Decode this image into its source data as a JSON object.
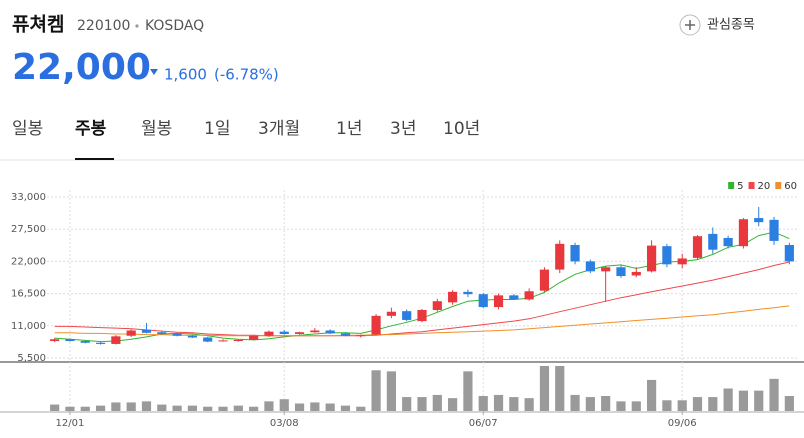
{
  "header": {
    "name": "퓨쳐켐",
    "code": "220100",
    "market": "KOSDAQ",
    "watch": "관심종목",
    "price": "22,000",
    "change": "1,600",
    "change_pct": "(-6.78%)"
  },
  "tabs": {
    "items": [
      "일봉",
      "주봉",
      "월봉",
      "1일",
      "3개월",
      "1년",
      "3년",
      "10년"
    ],
    "active": 1
  },
  "chart_data": {
    "type": "candlestick",
    "categories": [
      null,
      "12/01",
      null,
      null,
      null,
      null,
      null,
      null,
      null,
      null,
      null,
      null,
      null,
      null,
      null,
      "03/08",
      null,
      null,
      null,
      null,
      null,
      null,
      null,
      null,
      null,
      null,
      null,
      null,
      "06/07",
      null,
      null,
      null,
      null,
      null,
      null,
      null,
      null,
      null,
      null,
      null,
      null,
      "09/06",
      null,
      null,
      null,
      null,
      null,
      null,
      null
    ],
    "open": [
      8400,
      8700,
      8400,
      8100,
      7900,
      9300,
      10300,
      9900,
      9600,
      9300,
      9000,
      8400,
      8400,
      8600,
      9300,
      10000,
      9600,
      9900,
      10200,
      9700,
      9300,
      9500,
      12700,
      13500,
      11800,
      13700,
      15000,
      16800,
      16400,
      14200,
      16200,
      15500,
      17000,
      20600,
      24800,
      22000,
      20300,
      21000,
      19600,
      20300,
      24600,
      21500,
      22600,
      26700,
      26000,
      24600,
      29400,
      29100,
      24800
    ],
    "high": [
      8900,
      8800,
      8500,
      8300,
      9400,
      10400,
      11500,
      10100,
      9700,
      9400,
      9100,
      8700,
      8700,
      9400,
      10200,
      10300,
      10000,
      10600,
      10400,
      9900,
      9500,
      13000,
      14100,
      13800,
      13900,
      15600,
      17100,
      17200,
      16600,
      16500,
      16400,
      17400,
      21000,
      25600,
      25200,
      22300,
      21200,
      21300,
      21000,
      25600,
      25000,
      23300,
      26500,
      27800,
      26400,
      29400,
      31300,
      29600,
      25200
    ],
    "low": [
      8200,
      8300,
      8000,
      7800,
      7800,
      9100,
      9700,
      9500,
      9200,
      8900,
      8200,
      8300,
      8300,
      8500,
      9100,
      9500,
      9500,
      9800,
      9600,
      9200,
      9000,
      9400,
      12300,
      11800,
      11600,
      13400,
      14600,
      15900,
      14000,
      13800,
      15400,
      15300,
      16800,
      20000,
      21500,
      20000,
      15100,
      19200,
      19300,
      20100,
      21000,
      20800,
      22300,
      23300,
      24200,
      24200,
      28000,
      24800,
      21500
    ],
    "close": [
      8700,
      8400,
      8100,
      7900,
      9200,
      10200,
      9800,
      9600,
      9300,
      9000,
      8300,
      8500,
      8600,
      9300,
      10000,
      9600,
      9900,
      10200,
      9700,
      9300,
      9400,
      12700,
      13400,
      12000,
      13700,
      15200,
      16800,
      16400,
      14200,
      16200,
      15500,
      16900,
      20600,
      25000,
      22000,
      20300,
      21000,
      19500,
      20200,
      24700,
      21500,
      22500,
      26300,
      24000,
      24600,
      29200,
      28700,
      25500,
      22000
    ],
    "volume": [
      6,
      4,
      4,
      5,
      8,
      8,
      9,
      6,
      5,
      5,
      4,
      4,
      5,
      4,
      9,
      11,
      7,
      8,
      7,
      5,
      4,
      38,
      37,
      13,
      13,
      15,
      12,
      37,
      14,
      15,
      13,
      12,
      42,
      42,
      15,
      13,
      14,
      9,
      9,
      29,
      10,
      10,
      13,
      13,
      21,
      19,
      19,
      30,
      14
    ],
    "up_color": "#e8383d",
    "down_color": "#2b7fe0",
    "volume_color": "#9a9a9a",
    "series": [
      {
        "name": "5",
        "color": "#2fb52f",
        "values": [
          8900,
          8700,
          8500,
          8300,
          8400,
          8700,
          9100,
          9600,
          9700,
          9600,
          9300,
          8900,
          8700,
          8600,
          8800,
          9100,
          9400,
          9600,
          9800,
          9800,
          9700,
          10300,
          11000,
          11600,
          12300,
          13300,
          14300,
          15200,
          15400,
          15500,
          15500,
          15700,
          16700,
          18400,
          19800,
          20600,
          21200,
          21400,
          20800,
          21300,
          21900,
          22000,
          22300,
          23200,
          24400,
          24900,
          26400,
          27000,
          25900
        ]
      },
      {
        "name": "20",
        "color": "#f0474c",
        "values": [
          10900,
          10900,
          10800,
          10700,
          10600,
          10500,
          10300,
          10100,
          9900,
          9800,
          9600,
          9500,
          9400,
          9400,
          9300,
          9300,
          9300,
          9300,
          9300,
          9300,
          9300,
          9400,
          9600,
          9800,
          10000,
          10300,
          10600,
          10900,
          11200,
          11500,
          11800,
          12200,
          12800,
          13400,
          14000,
          14600,
          15200,
          15800,
          16300,
          16800,
          17300,
          17800,
          18300,
          18800,
          19400,
          20000,
          20600,
          21300,
          21900
        ]
      },
      {
        "name": "60",
        "color": "#f0902a",
        "values": [
          9800,
          9800,
          9700,
          9700,
          9600,
          9600,
          9500,
          9500,
          9400,
          9400,
          9400,
          9300,
          9300,
          9300,
          9300,
          9300,
          9300,
          9300,
          9300,
          9400,
          9400,
          9500,
          9500,
          9600,
          9700,
          9800,
          9900,
          10000,
          10100,
          10200,
          10300,
          10500,
          10700,
          10900,
          11100,
          11300,
          11500,
          11700,
          11900,
          12100,
          12300,
          12500,
          12700,
          12900,
          13200,
          13500,
          13800,
          14100,
          14400
        ]
      }
    ],
    "ylim": [
      5500,
      33000
    ],
    "yticks": [
      {
        "value": 5500,
        "label": "5,500"
      },
      {
        "value": 11000,
        "label": "11,000"
      },
      {
        "value": 16500,
        "label": "16,500"
      },
      {
        "value": 22000,
        "label": "22,000"
      },
      {
        "value": 27500,
        "label": "27,500"
      },
      {
        "value": 33000,
        "label": "33,000"
      }
    ],
    "grid": true,
    "legend": "top-right"
  }
}
